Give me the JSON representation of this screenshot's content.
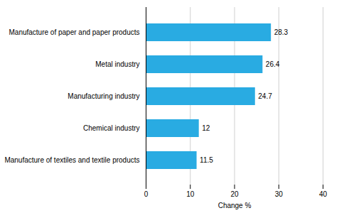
{
  "chart_data": {
    "type": "bar",
    "orientation": "horizontal",
    "categories": [
      "Manufacture of textiles and textile products",
      "Chemical industry",
      "Manufacturing industry",
      "Metal industry",
      "Manufacture of paper and paper products"
    ],
    "values": [
      11.5,
      12.0,
      24.7,
      26.4,
      28.3
    ],
    "color": "#29abe2",
    "xlabel": "Change %",
    "xlim": [
      0,
      40
    ],
    "xticks": [
      0,
      10,
      20,
      30,
      40
    ],
    "grid": true,
    "data_labels": true
  }
}
